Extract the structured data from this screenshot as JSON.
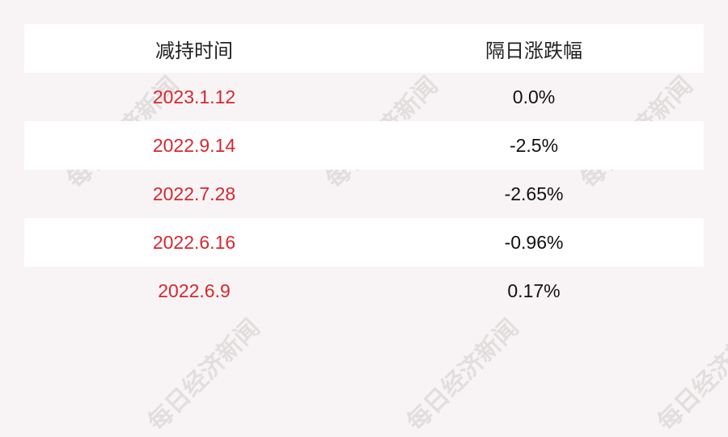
{
  "watermark": "每日经济新闻",
  "table": {
    "headers": [
      "减持时间",
      "隔日涨跌幅"
    ],
    "rows": [
      {
        "date": "2023.1.12",
        "change": "0.0%"
      },
      {
        "date": "2022.9.14",
        "change": "-2.5%"
      },
      {
        "date": "2022.7.28",
        "change": "-2.65%"
      },
      {
        "date": "2022.6.16",
        "change": "-0.96%"
      },
      {
        "date": "2022.6.9",
        "change": "0.17%"
      }
    ]
  },
  "colors": {
    "background": "#f8f4f5",
    "date_text": "#d7282f"
  }
}
